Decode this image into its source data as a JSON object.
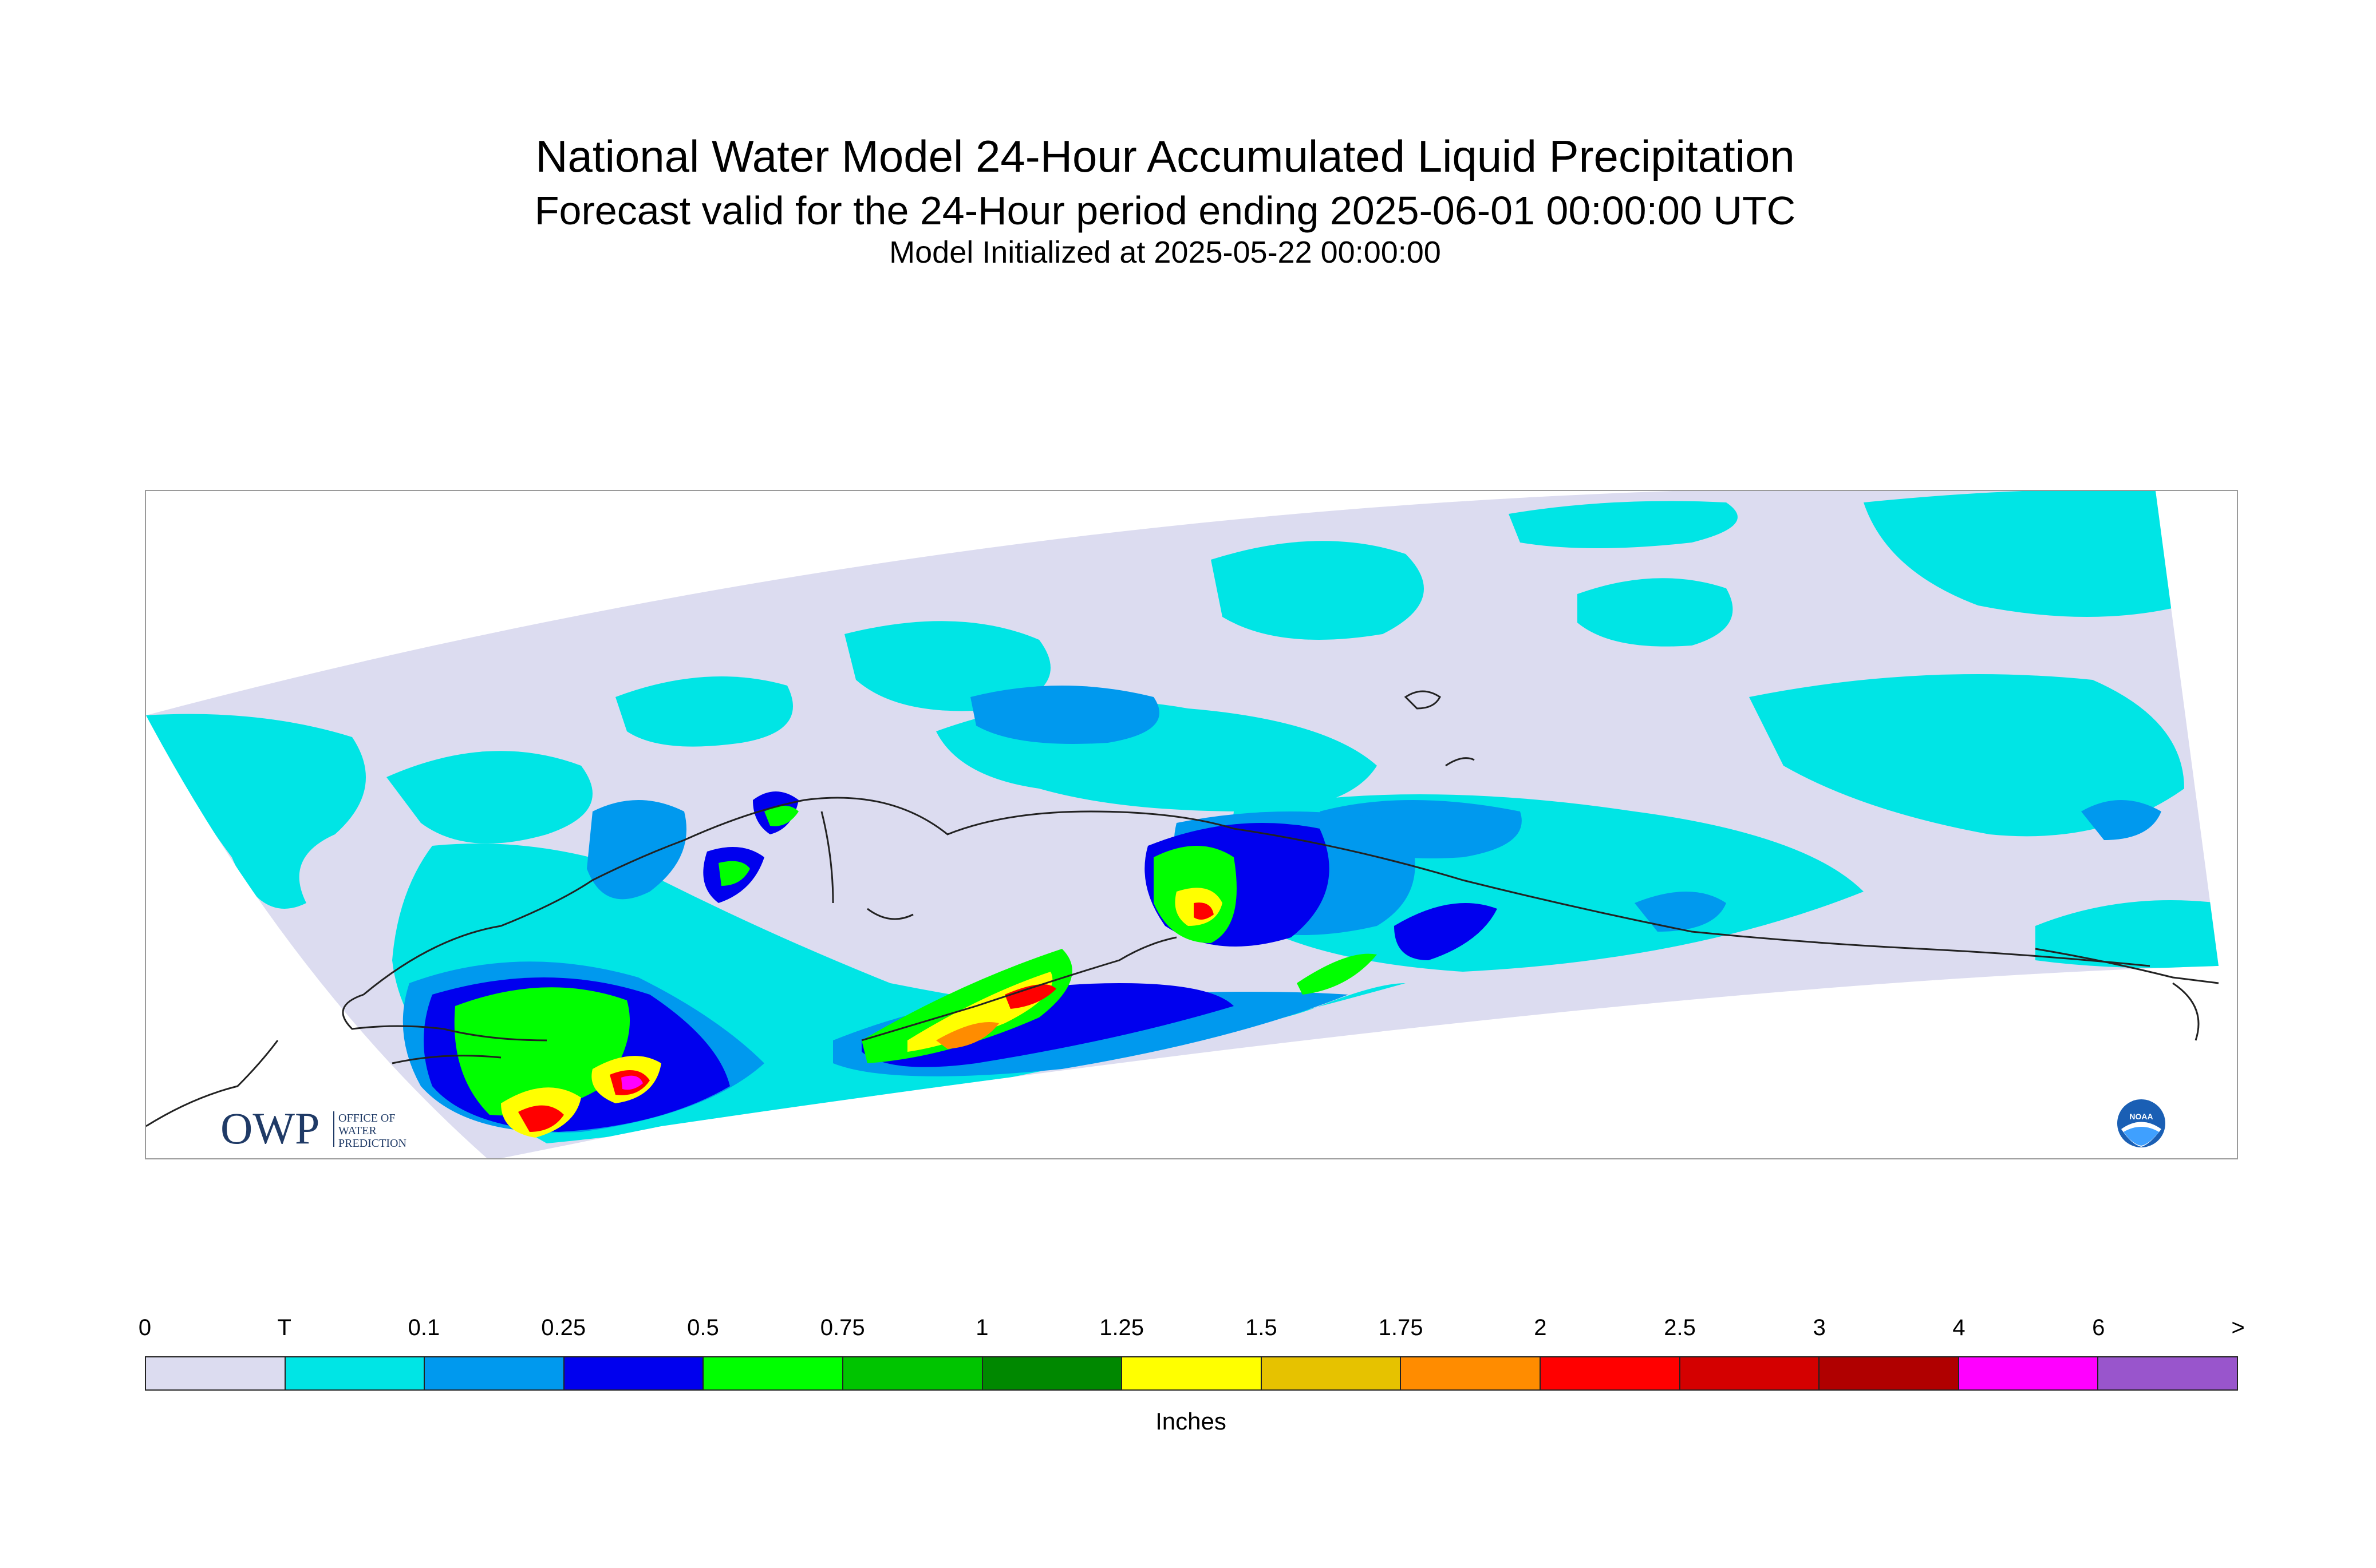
{
  "header": {
    "title": "National Water Model 24-Hour Accumulated Liquid Precipitation",
    "subtitle": "Forecast valid for the 24-Hour period ending 2025-06-01 00:00:00 UTC",
    "init": "Model Initialized at 2025-05-22 00:00:00"
  },
  "logos": {
    "owp_mark": "OWP",
    "owp_text": [
      "OFFICE OF",
      "WATER",
      "PREDICTION"
    ],
    "noaa_text": "NOAA"
  },
  "legend": {
    "units": "Inches",
    "ticks": [
      "0",
      "T",
      "0.1",
      "0.25",
      "0.5",
      "0.75",
      "1",
      "1.25",
      "1.5",
      "1.75",
      "2",
      "2.5",
      "3",
      "4",
      "6",
      ">"
    ],
    "colors": [
      "#dcdcf0",
      "#00e5e5",
      "#0099ee",
      "#0000ee",
      "#00ff00",
      "#00c400",
      "#008800",
      "#ffff00",
      "#e6c200",
      "#ff8c00",
      "#ff0000",
      "#d40000",
      "#b00000",
      "#ff00ff",
      "#9955cc"
    ]
  },
  "map": {
    "region": "Alaska",
    "palette": {
      "none": "#dcdcf0",
      "trace": "#00e5e5",
      "light": "#0099ee",
      "moderate": "#0000ee",
      "green": "#00ff00",
      "yellow": "#ffff00",
      "orange": "#ff8c00",
      "red": "#ff0000",
      "magenta": "#ff00ff"
    }
  }
}
